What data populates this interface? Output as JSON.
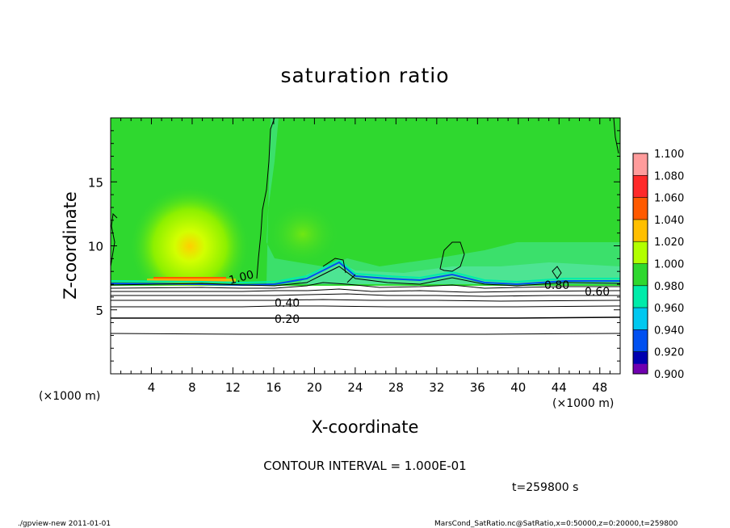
{
  "chart_data": {
    "type": "heatmap",
    "title": "saturation ratio",
    "xlabel": "X-coordinate",
    "ylabel": "Z-coordinate",
    "x_unit_label_left": "(×1000 m)",
    "x_unit_label_right": "(×1000 m)",
    "xlim": [
      0,
      50
    ],
    "ylim": [
      0,
      20
    ],
    "x_ticks": [
      4,
      8,
      12,
      16,
      20,
      24,
      28,
      32,
      36,
      40,
      44,
      48
    ],
    "y_ticks": [
      5,
      10,
      15
    ],
    "colorbar": {
      "levels": [
        "1.100",
        "1.080",
        "1.060",
        "1.040",
        "1.020",
        "1.000",
        "0.980",
        "0.960",
        "0.940",
        "0.920",
        "0.900"
      ],
      "colors": [
        "#ff9c9c",
        "#ff2a2a",
        "#ff5a00",
        "#ffbf00",
        "#b2ff00",
        "#2fd82f",
        "#00ecaa",
        "#00c8f0",
        "#0050f0",
        "#0000b0",
        "#7000b0"
      ]
    },
    "contours": [
      {
        "label": "1.00",
        "z": 7.4
      },
      {
        "label": "0.80",
        "z": 6.9
      },
      {
        "label": "0.60",
        "z": 6.5
      },
      {
        "label": "0.40",
        "z": 5.8
      },
      {
        "label": "0.20",
        "z": 4.3
      }
    ],
    "contour_interval_text": "CONTOUR INTERVAL = 1.000E-01",
    "time_text": "t=259800 s",
    "footer_left": "./gpview-new  2011-01-01",
    "footer_right": "MarsCond_SatRatio.nc@SatRatio,x=0:50000,z=0:20000,t=259800"
  }
}
